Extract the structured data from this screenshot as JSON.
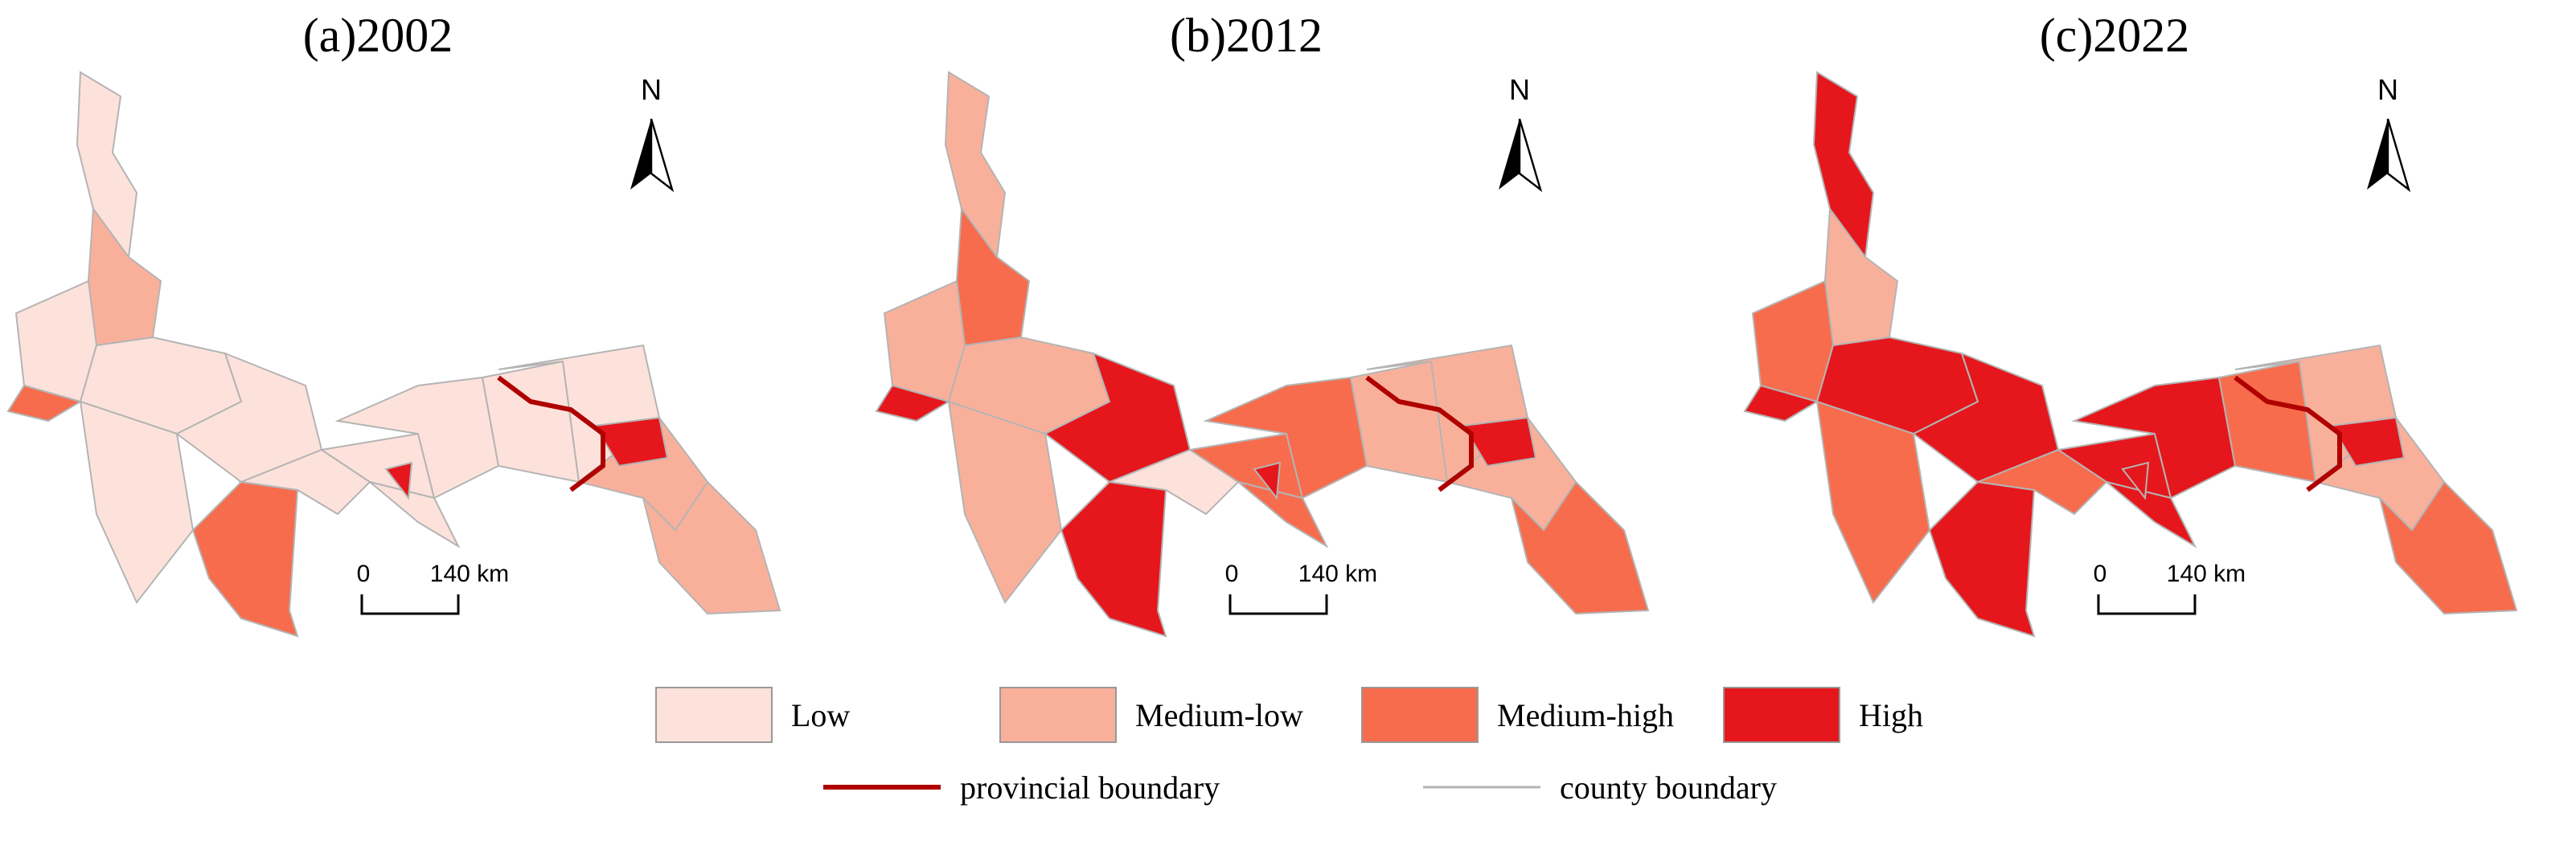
{
  "panels": [
    {
      "title": "(a)2002",
      "north": "N",
      "scale": {
        "start": "0",
        "end": "140 km"
      }
    },
    {
      "title": "(b)2012",
      "north": "N",
      "scale": {
        "start": "0",
        "end": "140 km"
      }
    },
    {
      "title": "(c)2022",
      "north": "N",
      "scale": {
        "start": "0",
        "end": "140 km"
      }
    }
  ],
  "legend": {
    "classes": [
      {
        "label": "Low",
        "color": "#fde2db"
      },
      {
        "label": "Medium-low",
        "color": "#f9b09b"
      },
      {
        "label": "Medium-high",
        "color": "#f76c4c"
      },
      {
        "label": "High",
        "color": "#e5171c"
      }
    ],
    "lines": [
      {
        "label": "provincial boundary",
        "color": "#b00000"
      },
      {
        "label": "county boundary",
        "color": "#b4b4b4"
      }
    ]
  }
}
